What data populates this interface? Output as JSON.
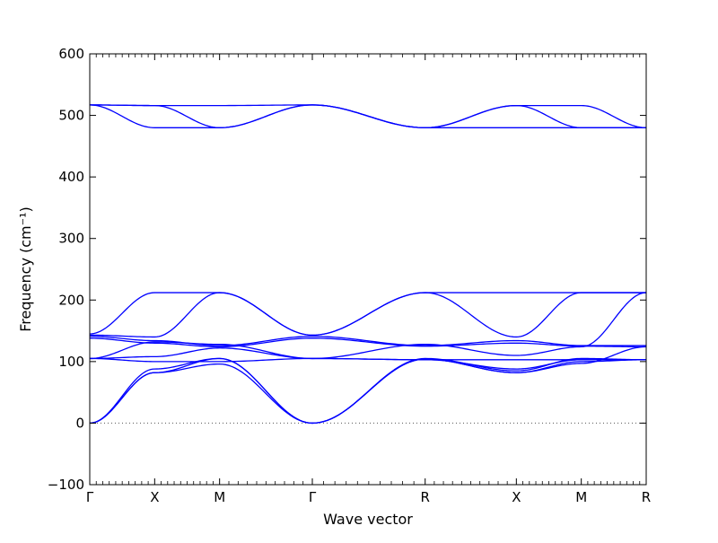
{
  "chart_data": {
    "type": "line",
    "xlabel": "Wave vector",
    "ylabel": "Frequency (cm⁻¹)",
    "ylim": [
      -100,
      600
    ],
    "yticks": [
      -100,
      0,
      100,
      200,
      300,
      400,
      500,
      600
    ],
    "ytick_labels": [
      "−100",
      "0",
      "100",
      "200",
      "300",
      "400",
      "500",
      "600"
    ],
    "xlim": [
      0,
      18
    ],
    "x_high_symmetry_points": [
      {
        "label": "Γ",
        "x": 0
      },
      {
        "label": "X",
        "x": 2.1
      },
      {
        "label": "M",
        "x": 4.2
      },
      {
        "label": "Γ",
        "x": 7.2
      },
      {
        "label": "R",
        "x": 10.85
      },
      {
        "label": "X",
        "x": 13.8
      },
      {
        "label": "M",
        "x": 15.9
      },
      {
        "label": "R",
        "x": 18
      }
    ],
    "zero_reference_line": true,
    "line_color": "#0000ff",
    "series": [
      {
        "points": [
          [
            0,
            517
          ],
          [
            2.1,
            516
          ],
          [
            4.2,
            516
          ],
          [
            7.2,
            517
          ],
          [
            10.85,
            480
          ],
          [
            13.8,
            516
          ],
          [
            15.9,
            516
          ],
          [
            18,
            480
          ]
        ]
      },
      {
        "points": [
          [
            0,
            517
          ],
          [
            2.1,
            516
          ],
          [
            4.2,
            480
          ],
          [
            7.2,
            517
          ],
          [
            10.85,
            480
          ],
          [
            13.8,
            516
          ],
          [
            15.9,
            480
          ],
          [
            18,
            480
          ]
        ]
      },
      {
        "points": [
          [
            0,
            517
          ],
          [
            2.1,
            480
          ],
          [
            4.2,
            480
          ],
          [
            7.2,
            517
          ],
          [
            10.85,
            480
          ],
          [
            13.8,
            480
          ],
          [
            15.9,
            480
          ],
          [
            18,
            480
          ]
        ]
      },
      {
        "points": [
          [
            0,
            145
          ],
          [
            2.1,
            212
          ],
          [
            4.2,
            212
          ],
          [
            7.2,
            143
          ],
          [
            10.85,
            212
          ],
          [
            13.8,
            212
          ],
          [
            15.9,
            212
          ],
          [
            18,
            212
          ]
        ]
      },
      {
        "points": [
          [
            0,
            143
          ],
          [
            2.1,
            140
          ],
          [
            4.2,
            212
          ],
          [
            7.2,
            143
          ],
          [
            10.85,
            212
          ],
          [
            13.8,
            140
          ],
          [
            15.9,
            212
          ],
          [
            18,
            212
          ]
        ]
      },
      {
        "points": [
          [
            0,
            141
          ],
          [
            2.1,
            134
          ],
          [
            4.2,
            126
          ],
          [
            7.2,
            141
          ],
          [
            10.85,
            126
          ],
          [
            13.8,
            134
          ],
          [
            15.9,
            126
          ],
          [
            18,
            126
          ]
        ]
      },
      {
        "points": [
          [
            0,
            138
          ],
          [
            2.1,
            130
          ],
          [
            4.2,
            124
          ],
          [
            7.2,
            138
          ],
          [
            10.85,
            125
          ],
          [
            13.8,
            130
          ],
          [
            15.9,
            125
          ],
          [
            18,
            124
          ]
        ]
      },
      {
        "points": [
          [
            0,
            105
          ],
          [
            2.1,
            132
          ],
          [
            4.2,
            128
          ],
          [
            7.2,
            105
          ],
          [
            10.85,
            128
          ],
          [
            13.8,
            110
          ],
          [
            15.9,
            124
          ],
          [
            18,
            212
          ]
        ]
      },
      {
        "points": [
          [
            0,
            105
          ],
          [
            2.1,
            108
          ],
          [
            4.2,
            122
          ],
          [
            7.2,
            105
          ],
          [
            10.85,
            103
          ],
          [
            13.8,
            88
          ],
          [
            15.9,
            103
          ],
          [
            18,
            103
          ]
        ]
      },
      {
        "points": [
          [
            0,
            105
          ],
          [
            2.1,
            100
          ],
          [
            4.2,
            100
          ],
          [
            7.2,
            105
          ],
          [
            10.85,
            103
          ],
          [
            13.8,
            103
          ],
          [
            15.9,
            103
          ],
          [
            18,
            103
          ]
        ]
      },
      {
        "points": [
          [
            0,
            0
          ],
          [
            2.1,
            88
          ],
          [
            4.2,
            105
          ],
          [
            7.2,
            0
          ],
          [
            10.85,
            105
          ],
          [
            13.8,
            85
          ],
          [
            15.9,
            105
          ],
          [
            18,
            103
          ]
        ]
      },
      {
        "points": [
          [
            0,
            0
          ],
          [
            2.1,
            82
          ],
          [
            4.2,
            96
          ],
          [
            7.2,
            0
          ],
          [
            10.85,
            104
          ],
          [
            13.8,
            82
          ],
          [
            15.9,
            97
          ],
          [
            18,
            124
          ]
        ]
      },
      {
        "points": [
          [
            0,
            0
          ],
          [
            2.1,
            82
          ],
          [
            4.2,
            105
          ],
          [
            7.2,
            0
          ],
          [
            10.85,
            104
          ],
          [
            13.8,
            82
          ],
          [
            15.9,
            100
          ],
          [
            18,
            103
          ]
        ]
      }
    ]
  }
}
